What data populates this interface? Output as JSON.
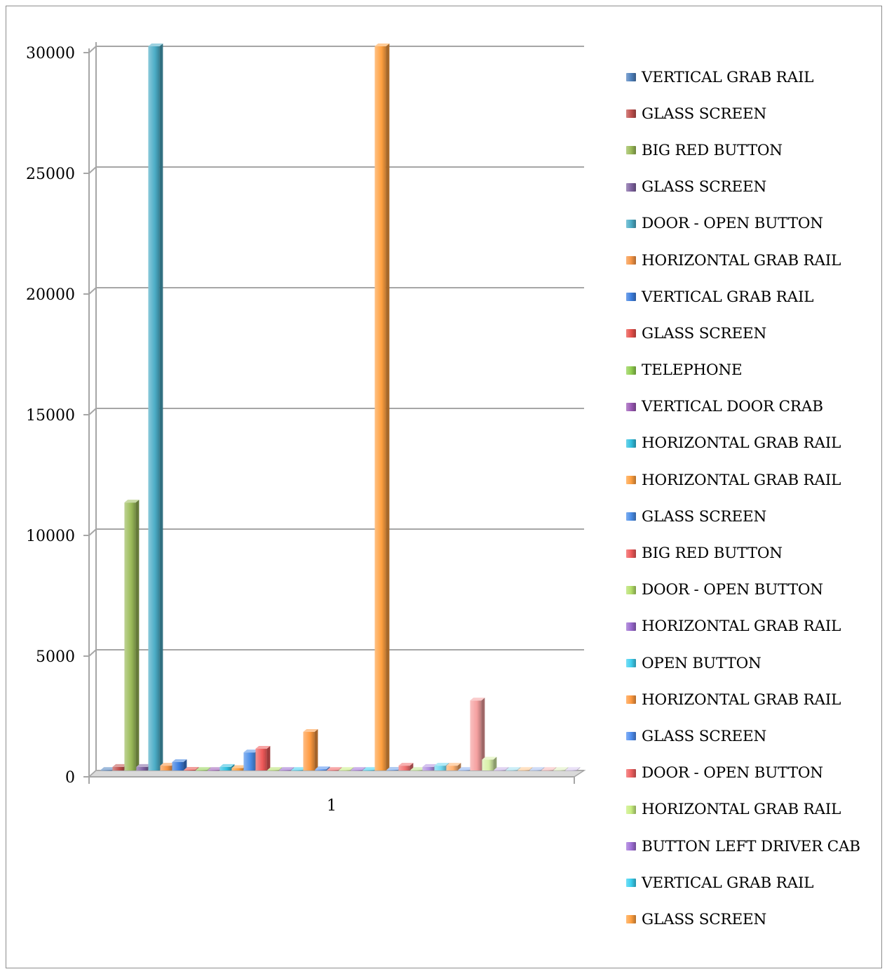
{
  "chart_data": {
    "type": "bar",
    "title": "",
    "xlabel": "",
    "ylabel": "",
    "categories": [
      "1"
    ],
    "ylim": [
      0,
      30000
    ],
    "yticks": [
      0,
      5000,
      10000,
      15000,
      20000,
      25000,
      30000
    ],
    "grid": true,
    "three_d": true,
    "legend_position": "right",
    "series": [
      {
        "name": "VERTICAL GRAB RAIL",
        "color": "#4f81bd",
        "values": [
          20
        ]
      },
      {
        "name": "GLASS SCREEN",
        "color": "#c0504d",
        "values": [
          150
        ]
      },
      {
        "name": "BIG RED BUTTON",
        "color": "#9bbb59",
        "values": [
          11100
        ]
      },
      {
        "name": "GLASS SCREEN",
        "color": "#8064a2",
        "values": [
          150
        ]
      },
      {
        "name": "DOOR - OPEN BUTTON",
        "color": "#4bacc6",
        "values": [
          30000
        ]
      },
      {
        "name": "HORIZONTAL GRAB RAIL",
        "color": "#f79646",
        "values": [
          200
        ]
      },
      {
        "name": "VERTICAL GRAB RAIL",
        "color": "#3d7fe0",
        "values": [
          350
        ]
      },
      {
        "name": "GLASS SCREEN",
        "color": "#e8504a",
        "values": [
          30
        ]
      },
      {
        "name": "TELEPHONE",
        "color": "#92d050",
        "values": [
          20
        ]
      },
      {
        "name": "VERTICAL DOOR CRAB",
        "color": "#9b59b6",
        "values": [
          20
        ]
      },
      {
        "name": "HORIZONTAL GRAB RAIL",
        "color": "#31c0e0",
        "values": [
          150
        ]
      },
      {
        "name": "HORIZONTAL GRAB RAIL",
        "color": "#ffa040",
        "values": [
          100
        ]
      },
      {
        "name": "GLASS SCREEN",
        "color": "#4a8de8",
        "values": [
          750
        ]
      },
      {
        "name": "BIG RED BUTTON",
        "color": "#f05a5a",
        "values": [
          900
        ]
      },
      {
        "name": "DOOR - OPEN BUTTON",
        "color": "#b5e06a",
        "values": [
          20
        ]
      },
      {
        "name": "HORIZONTAL GRAB RAIL",
        "color": "#9a6ad0",
        "values": [
          20
        ]
      },
      {
        "name": "OPEN BUTTON",
        "color": "#40d0f0",
        "values": [
          20
        ]
      },
      {
        "name": "HORIZONTAL GRAB RAIL",
        "color": "#ff9a40",
        "values": [
          1600
        ]
      },
      {
        "name": "GLASS SCREEN",
        "color": "#4f8ef0",
        "values": [
          50
        ]
      },
      {
        "name": "DOOR - OPEN BUTTON",
        "color": "#f06060",
        "values": [
          20
        ]
      },
      {
        "name": "HORIZONTAL GRAB RAIL",
        "color": "#c8ee80",
        "values": [
          20
        ]
      },
      {
        "name": "BUTTON LEFT DRIVER CAB",
        "color": "#a070d8",
        "values": [
          20
        ]
      },
      {
        "name": "VERTICAL GRAB RAIL",
        "color": "#3ad0f0",
        "values": [
          20
        ]
      },
      {
        "name": "GLASS SCREEN",
        "color": "#ffa040",
        "values": [
          30000
        ]
      },
      {
        "name": "",
        "color": "#6fa0e8",
        "values": [
          30
        ]
      },
      {
        "name": "",
        "color": "#f07070",
        "values": [
          200
        ]
      },
      {
        "name": "",
        "color": "#c0e890",
        "values": [
          20
        ]
      },
      {
        "name": "",
        "color": "#b090e0",
        "values": [
          150
        ]
      },
      {
        "name": "",
        "color": "#70d8f0",
        "values": [
          200
        ]
      },
      {
        "name": "",
        "color": "#ffb070",
        "values": [
          200
        ]
      },
      {
        "name": "",
        "color": "#8ab0f0",
        "values": [
          20
        ]
      },
      {
        "name": "",
        "color": "#f5a0a0",
        "values": [
          2900
        ]
      },
      {
        "name": "",
        "color": "#d8f0a8",
        "values": [
          450
        ]
      },
      {
        "name": "",
        "color": "#c8b0e8",
        "values": [
          20
        ]
      },
      {
        "name": "",
        "color": "#a0e0f0",
        "values": [
          20
        ]
      },
      {
        "name": "",
        "color": "#ffc890",
        "values": [
          20
        ]
      },
      {
        "name": "",
        "color": "#a8c0f0",
        "values": [
          20
        ]
      },
      {
        "name": "",
        "color": "#f8b8b8",
        "values": [
          20
        ]
      },
      {
        "name": "",
        "color": "#e0f0c0",
        "values": [
          20
        ]
      },
      {
        "name": "",
        "color": "#d8c8f0",
        "values": [
          20
        ]
      }
    ]
  }
}
